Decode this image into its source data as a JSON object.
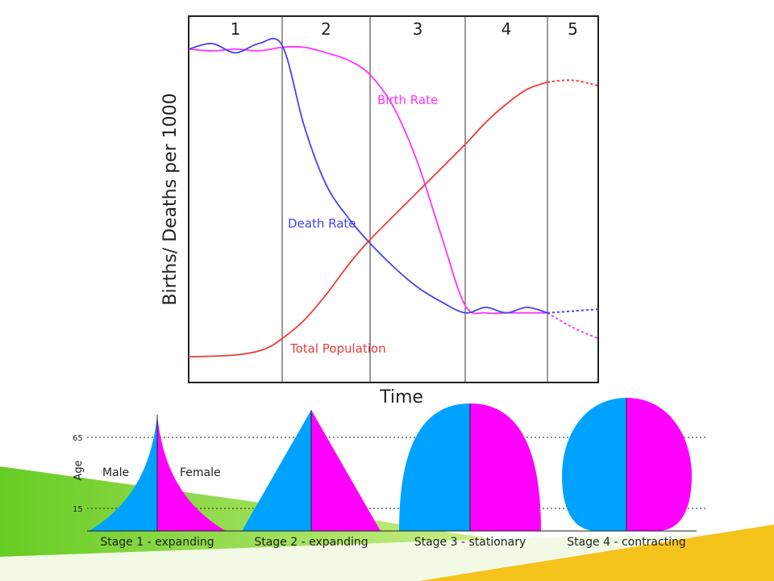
{
  "chart_data": [
    {
      "type": "line",
      "ylabel": "Births/ Deaths per 1000",
      "xlabel": "Time",
      "stages": [
        "1",
        "2",
        "3",
        "4",
        "5"
      ],
      "stage_bounds": [
        0,
        1,
        2,
        3,
        4,
        4.6
      ],
      "ylim": [
        0,
        100
      ],
      "grid": false,
      "legend": "inline labels",
      "series": [
        {
          "name": "Birth Rate",
          "color": "#ff33ff",
          "dashed_from_x": 4,
          "points": [
            [
              0,
              91
            ],
            [
              0.25,
              90.5
            ],
            [
              0.5,
              91
            ],
            [
              0.75,
              90.5
            ],
            [
              1,
              91.5
            ],
            [
              1.25,
              91.5
            ],
            [
              1.5,
              90
            ],
            [
              1.75,
              88
            ],
            [
              2,
              84
            ],
            [
              2.25,
              75
            ],
            [
              2.5,
              60
            ],
            [
              2.75,
              40
            ],
            [
              3,
              21
            ],
            [
              3.25,
              19
            ],
            [
              3.5,
              19
            ],
            [
              3.75,
              19
            ],
            [
              4,
              19
            ],
            [
              4.3,
              15
            ],
            [
              4.6,
              12
            ]
          ]
        },
        {
          "name": "Death Rate",
          "color": "#4444ee",
          "dashed_from_x": 4,
          "points": [
            [
              0,
              91
            ],
            [
              0.25,
              92.5
            ],
            [
              0.5,
              90
            ],
            [
              0.75,
              92.5
            ],
            [
              1,
              92
            ],
            [
              1.25,
              70
            ],
            [
              1.5,
              54
            ],
            [
              1.75,
              45
            ],
            [
              2,
              38
            ],
            [
              2.25,
              31.5
            ],
            [
              2.5,
              26
            ],
            [
              2.75,
              22
            ],
            [
              3,
              19
            ],
            [
              3.25,
              20.5
            ],
            [
              3.5,
              19
            ],
            [
              3.75,
              20.5
            ],
            [
              4,
              19
            ],
            [
              4.3,
              19.5
            ],
            [
              4.6,
              20
            ]
          ]
        },
        {
          "name": "Total Population",
          "color": "#ee3b3b",
          "dashed_from_x": 4,
          "points": [
            [
              0,
              7
            ],
            [
              0.5,
              7.5
            ],
            [
              0.8,
              9
            ],
            [
              1,
              12
            ],
            [
              1.25,
              17
            ],
            [
              1.5,
              24
            ],
            [
              1.75,
              32
            ],
            [
              2,
              39
            ],
            [
              2.5,
              52
            ],
            [
              3,
              65
            ],
            [
              3.25,
              71
            ],
            [
              3.5,
              76
            ],
            [
              3.75,
              80
            ],
            [
              4,
              82
            ],
            [
              4.3,
              82.5
            ],
            [
              4.6,
              81
            ]
          ]
        }
      ],
      "labels": {
        "birth": "Birth Rate",
        "death": "Death Rate",
        "population": "Total Population"
      }
    },
    {
      "type": "area",
      "ylabel": "Age",
      "y_ticks": [
        "65",
        "15"
      ],
      "legend_left": "Male",
      "legend_right": "Female",
      "male_color": "#00a2ff",
      "female_color": "#ff00ff",
      "pyramids": [
        {
          "label": "Stage 1 - expanding",
          "shape": "concave"
        },
        {
          "label": "Stage 2 - expanding",
          "shape": "triangle"
        },
        {
          "label": "Stage 3 - stationary",
          "shape": "dome"
        },
        {
          "label": "Stage 4 - contracting",
          "shape": "egg"
        }
      ]
    }
  ],
  "decor": {
    "band_color_dark": "#66cc22",
    "band_color_light": "#ccee88",
    "band_color_yellow": "#f6c21c"
  }
}
